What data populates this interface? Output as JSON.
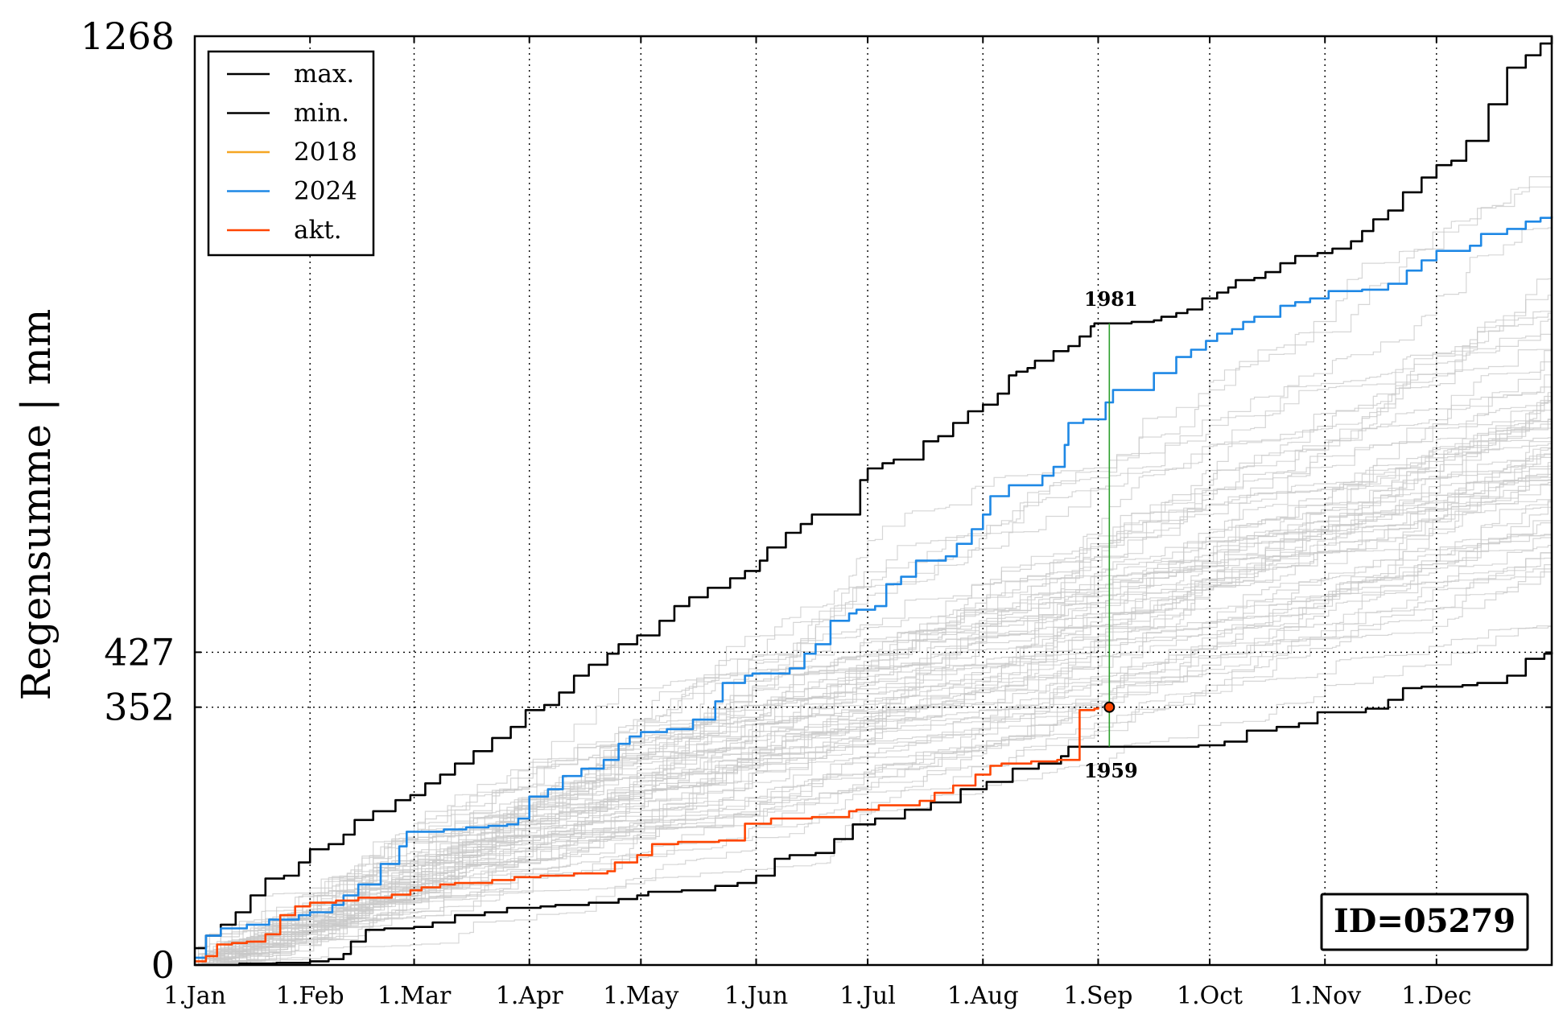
{
  "chart_data": {
    "type": "line",
    "ylabel": "Regensumme | mm",
    "ylim": [
      0,
      1268
    ],
    "xlim_day": [
      0,
      365
    ],
    "y_ticks": [
      0,
      352,
      427,
      1268
    ],
    "y_tick_labels": [
      "0",
      "352",
      "427",
      "1268"
    ],
    "x_ticks": [
      "1.Jan",
      "1.Feb",
      "1.Mar",
      "1.Apr",
      "1.May",
      "1.Jun",
      "1.Jul",
      "1.Aug",
      "1.Sep",
      "1.Oct",
      "1.Nov",
      "1.Dec"
    ],
    "grid": "dotted vertical at month starts; dotted horizontal at 352 and 427",
    "legend_position": "top-left",
    "legend": [
      {
        "label": "max.",
        "color": "#000000"
      },
      {
        "label": "min.",
        "color": "#000000"
      },
      {
        "label": "2018",
        "color": "#f5a623"
      },
      {
        "label": "2024",
        "color": "#1e88e5"
      },
      {
        "label": "akt.",
        "color": "#ff4500"
      }
    ],
    "id_box": "ID=05279",
    "marker": {
      "x": "4.Sep",
      "y": 352,
      "color": "#ff4500"
    },
    "vline_color": "#2ca02c",
    "annotations": [
      {
        "text": "1981",
        "x": "4.Sep",
        "y": 876,
        "position": "above"
      },
      {
        "text": "1959",
        "x": "4.Sep",
        "y": 298,
        "position": "below"
      }
    ],
    "series": [
      {
        "name": "max.",
        "color": "#000000",
        "width": 2.6,
        "points": [
          [
            0,
            23
          ],
          [
            3,
            40
          ],
          [
            7,
            55
          ],
          [
            11,
            72
          ],
          [
            15,
            95
          ],
          [
            19,
            118
          ],
          [
            24,
            122
          ],
          [
            28,
            140
          ],
          [
            31,
            158
          ],
          [
            36,
            165
          ],
          [
            40,
            178
          ],
          [
            43,
            198
          ],
          [
            48,
            210
          ],
          [
            54,
            225
          ],
          [
            58,
            232
          ],
          [
            62,
            248
          ],
          [
            66,
            260
          ],
          [
            70,
            275
          ],
          [
            75,
            292
          ],
          [
            80,
            310
          ],
          [
            85,
            325
          ],
          [
            89,
            348
          ],
          [
            94,
            355
          ],
          [
            98,
            372
          ],
          [
            102,
            395
          ],
          [
            106,
            410
          ],
          [
            111,
            425
          ],
          [
            114,
            438
          ],
          [
            119,
            450
          ],
          [
            125,
            470
          ],
          [
            129,
            490
          ],
          [
            133,
            502
          ],
          [
            138,
            515
          ],
          [
            144,
            528
          ],
          [
            148,
            538
          ],
          [
            152,
            552
          ],
          [
            154,
            570
          ],
          [
            159,
            590
          ],
          [
            163,
            602
          ],
          [
            166,
            615
          ],
          [
            179,
            662
          ],
          [
            181,
            678
          ],
          [
            185,
            685
          ],
          [
            188,
            690
          ],
          [
            196,
            715
          ],
          [
            200,
            722
          ],
          [
            204,
            740
          ],
          [
            208,
            756
          ],
          [
            212,
            765
          ],
          [
            216,
            780
          ],
          [
            219,
            805
          ],
          [
            221,
            810
          ],
          [
            224,
            815
          ],
          [
            226,
            825
          ],
          [
            231,
            838
          ],
          [
            235,
            845
          ],
          [
            238,
            858
          ],
          [
            241,
            872
          ],
          [
            242,
            876
          ],
          [
            249,
            876
          ],
          [
            252,
            878
          ],
          [
            258,
            880
          ],
          [
            260,
            885
          ],
          [
            264,
            890
          ],
          [
            267,
            895
          ],
          [
            271,
            910
          ],
          [
            275,
            918
          ],
          [
            278,
            925
          ],
          [
            280,
            935
          ],
          [
            285,
            938
          ],
          [
            288,
            946
          ],
          [
            292,
            958
          ],
          [
            296,
            968
          ],
          [
            302,
            972
          ],
          [
            306,
            978
          ],
          [
            311,
            988
          ],
          [
            314,
            1002
          ],
          [
            317,
            1018
          ],
          [
            321,
            1030
          ],
          [
            325,
            1055
          ],
          [
            330,
            1075
          ],
          [
            334,
            1092
          ],
          [
            338,
            1098
          ],
          [
            342,
            1125
          ],
          [
            348,
            1175
          ],
          [
            353,
            1225
          ],
          [
            358,
            1242
          ],
          [
            362,
            1258
          ],
          [
            365,
            1268
          ]
        ]
      },
      {
        "name": "min.",
        "color": "#000000",
        "width": 2.6,
        "points": [
          [
            0,
            0
          ],
          [
            8,
            0
          ],
          [
            12,
            2
          ],
          [
            22,
            3
          ],
          [
            31,
            5
          ],
          [
            36,
            8
          ],
          [
            40,
            15
          ],
          [
            42,
            32
          ],
          [
            46,
            48
          ],
          [
            51,
            50
          ],
          [
            59,
            52
          ],
          [
            64,
            58
          ],
          [
            70,
            68
          ],
          [
            78,
            72
          ],
          [
            84,
            78
          ],
          [
            93,
            80
          ],
          [
            97,
            82
          ],
          [
            106,
            85
          ],
          [
            114,
            90
          ],
          [
            119,
            95
          ],
          [
            122,
            100
          ],
          [
            131,
            102
          ],
          [
            140,
            108
          ],
          [
            146,
            112
          ],
          [
            151,
            122
          ],
          [
            156,
            145
          ],
          [
            160,
            150
          ],
          [
            167,
            153
          ],
          [
            172,
            172
          ],
          [
            177,
            192
          ],
          [
            183,
            200
          ],
          [
            191,
            212
          ],
          [
            198,
            222
          ],
          [
            206,
            240
          ],
          [
            213,
            250
          ],
          [
            220,
            268
          ],
          [
            227,
            275
          ],
          [
            233,
            285
          ],
          [
            235,
            298
          ],
          [
            270,
            300
          ],
          [
            277,
            305
          ],
          [
            283,
            320
          ],
          [
            291,
            325
          ],
          [
            297,
            330
          ],
          [
            302,
            345
          ],
          [
            315,
            350
          ],
          [
            321,
            362
          ],
          [
            325,
            378
          ],
          [
            330,
            380
          ],
          [
            341,
            382
          ],
          [
            345,
            385
          ],
          [
            353,
            395
          ],
          [
            358,
            418
          ],
          [
            363,
            425
          ],
          [
            365,
            427
          ]
        ]
      },
      {
        "name": "2024",
        "color": "#1e88e5",
        "width": 2.6,
        "points": [
          [
            0,
            10
          ],
          [
            3,
            40
          ],
          [
            7,
            50
          ],
          [
            14,
            55
          ],
          [
            20,
            62
          ],
          [
            28,
            68
          ],
          [
            31,
            72
          ],
          [
            37,
            82
          ],
          [
            40,
            95
          ],
          [
            44,
            110
          ],
          [
            50,
            138
          ],
          [
            55,
            162
          ],
          [
            57,
            182
          ],
          [
            61,
            182
          ],
          [
            67,
            185
          ],
          [
            73,
            188
          ],
          [
            79,
            190
          ],
          [
            84,
            192
          ],
          [
            87,
            200
          ],
          [
            90,
            230
          ],
          [
            95,
            240
          ],
          [
            99,
            258
          ],
          [
            104,
            268
          ],
          [
            110,
            280
          ],
          [
            114,
            302
          ],
          [
            117,
            312
          ],
          [
            120,
            318
          ],
          [
            127,
            322
          ],
          [
            134,
            335
          ],
          [
            140,
            360
          ],
          [
            142,
            385
          ],
          [
            148,
            395
          ],
          [
            150,
            398
          ],
          [
            160,
            405
          ],
          [
            164,
            425
          ],
          [
            167,
            438
          ],
          [
            171,
            470
          ],
          [
            176,
            480
          ],
          [
            178,
            485
          ],
          [
            183,
            490
          ],
          [
            186,
            520
          ],
          [
            190,
            530
          ],
          [
            194,
            552
          ],
          [
            202,
            558
          ],
          [
            205,
            575
          ],
          [
            209,
            595
          ],
          [
            212,
            615
          ],
          [
            214,
            640
          ],
          [
            219,
            655
          ],
          [
            228,
            668
          ],
          [
            231,
            680
          ],
          [
            234,
            710
          ],
          [
            235,
            740
          ],
          [
            239,
            745
          ],
          [
            245,
            768
          ],
          [
            247,
            785
          ],
          [
            253,
            785
          ],
          [
            258,
            808
          ],
          [
            264,
            830
          ],
          [
            268,
            840
          ],
          [
            272,
            852
          ],
          [
            275,
            862
          ],
          [
            279,
            868
          ],
          [
            282,
            878
          ],
          [
            285,
            885
          ],
          [
            292,
            900
          ],
          [
            296,
            905
          ],
          [
            300,
            910
          ],
          [
            305,
            920
          ],
          [
            314,
            922
          ],
          [
            321,
            930
          ],
          [
            326,
            948
          ],
          [
            330,
            962
          ],
          [
            334,
            975
          ],
          [
            343,
            982
          ],
          [
            346,
            998
          ],
          [
            353,
            1005
          ],
          [
            358,
            1015
          ],
          [
            362,
            1020
          ],
          [
            365,
            1022
          ]
        ]
      },
      {
        "name": "akt.",
        "color": "#ff4500",
        "width": 2.6,
        "points": [
          [
            0,
            5
          ],
          [
            3,
            12
          ],
          [
            6,
            28
          ],
          [
            10,
            30
          ],
          [
            14,
            32
          ],
          [
            19,
            42
          ],
          [
            23,
            68
          ],
          [
            27,
            80
          ],
          [
            31,
            85
          ],
          [
            38,
            88
          ],
          [
            44,
            92
          ],
          [
            53,
            96
          ],
          [
            58,
            102
          ],
          [
            61,
            106
          ],
          [
            66,
            110
          ],
          [
            70,
            112
          ],
          [
            80,
            116
          ],
          [
            86,
            120
          ],
          [
            93,
            122
          ],
          [
            102,
            125
          ],
          [
            111,
            128
          ],
          [
            113,
            140
          ],
          [
            119,
            150
          ],
          [
            123,
            165
          ],
          [
            130,
            168
          ],
          [
            141,
            170
          ],
          [
            148,
            182
          ],
          [
            148,
            193
          ],
          [
            155,
            200
          ],
          [
            166,
            202
          ],
          [
            176,
            210
          ],
          [
            178,
            212
          ],
          [
            184,
            218
          ],
          [
            195,
            224
          ],
          [
            199,
            235
          ],
          [
            204,
            245
          ],
          [
            210,
            260
          ],
          [
            214,
            272
          ],
          [
            217,
            275
          ],
          [
            225,
            278
          ],
          [
            232,
            280
          ],
          [
            238,
            348
          ],
          [
            242,
            350
          ],
          [
            243,
            352
          ]
        ]
      }
    ],
    "background_series_count": 60
  },
  "colors": {
    "axis": "#000000",
    "background_lines": "#c8c8c8",
    "grid": "#000000"
  }
}
